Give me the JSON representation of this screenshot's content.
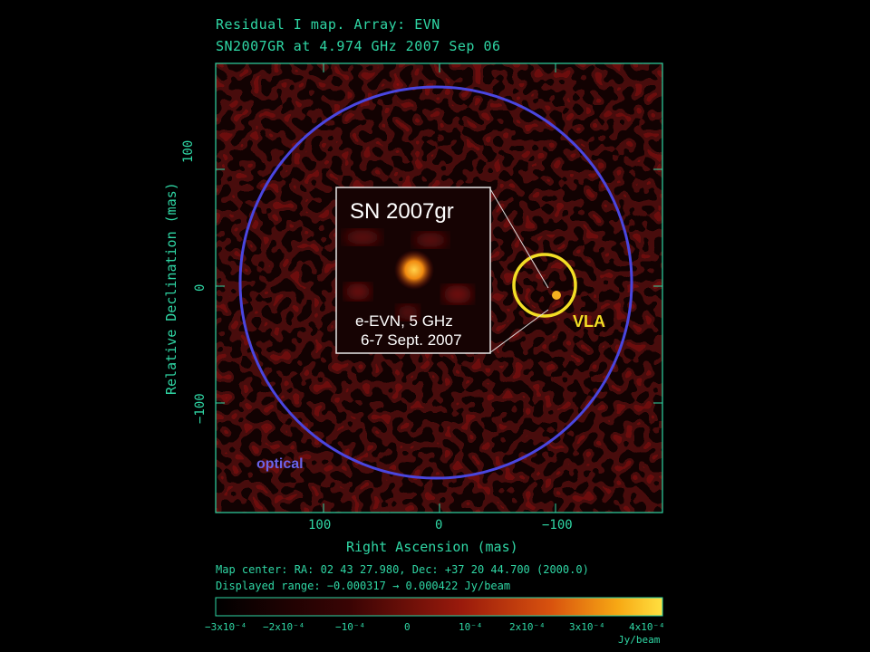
{
  "header": {
    "line1": "Residual I map.  Array:  EVN",
    "line2": "SN2007GR at 4.974 GHz 2007 Sep 06"
  },
  "axes": {
    "xlabel": "Right Ascension  (mas)",
    "ylabel": "Relative Declination  (mas)",
    "xticks": [
      "100",
      "0",
      "−100"
    ],
    "yticks": [
      "100",
      "0",
      "−100"
    ]
  },
  "inset": {
    "title": "SN 2007gr",
    "line1": "e-EVN, 5 GHz",
    "line2": "6-7 Sept. 2007"
  },
  "labels": {
    "vla": "VLA",
    "optical": "optical"
  },
  "footer": {
    "map_center": "Map center:  RA: 02 43 27.980,  Dec: +37 20 44.700 (2000.0)",
    "range": "Displayed range: −0.000317 → 0.000422 Jy/beam"
  },
  "colorbar": {
    "ticks": [
      "−3x10⁻⁴",
      "−2x10⁻⁴",
      "−10⁻⁴",
      "0",
      "10⁻⁴",
      "2x10⁻⁴",
      "3x10⁻⁴",
      "4x10⁻⁴"
    ],
    "unit": "Jy/beam"
  },
  "colors": {
    "axis": "#2fd6a4",
    "optical_circle": "#4a46e0",
    "vla_circle": "#f3de25"
  }
}
